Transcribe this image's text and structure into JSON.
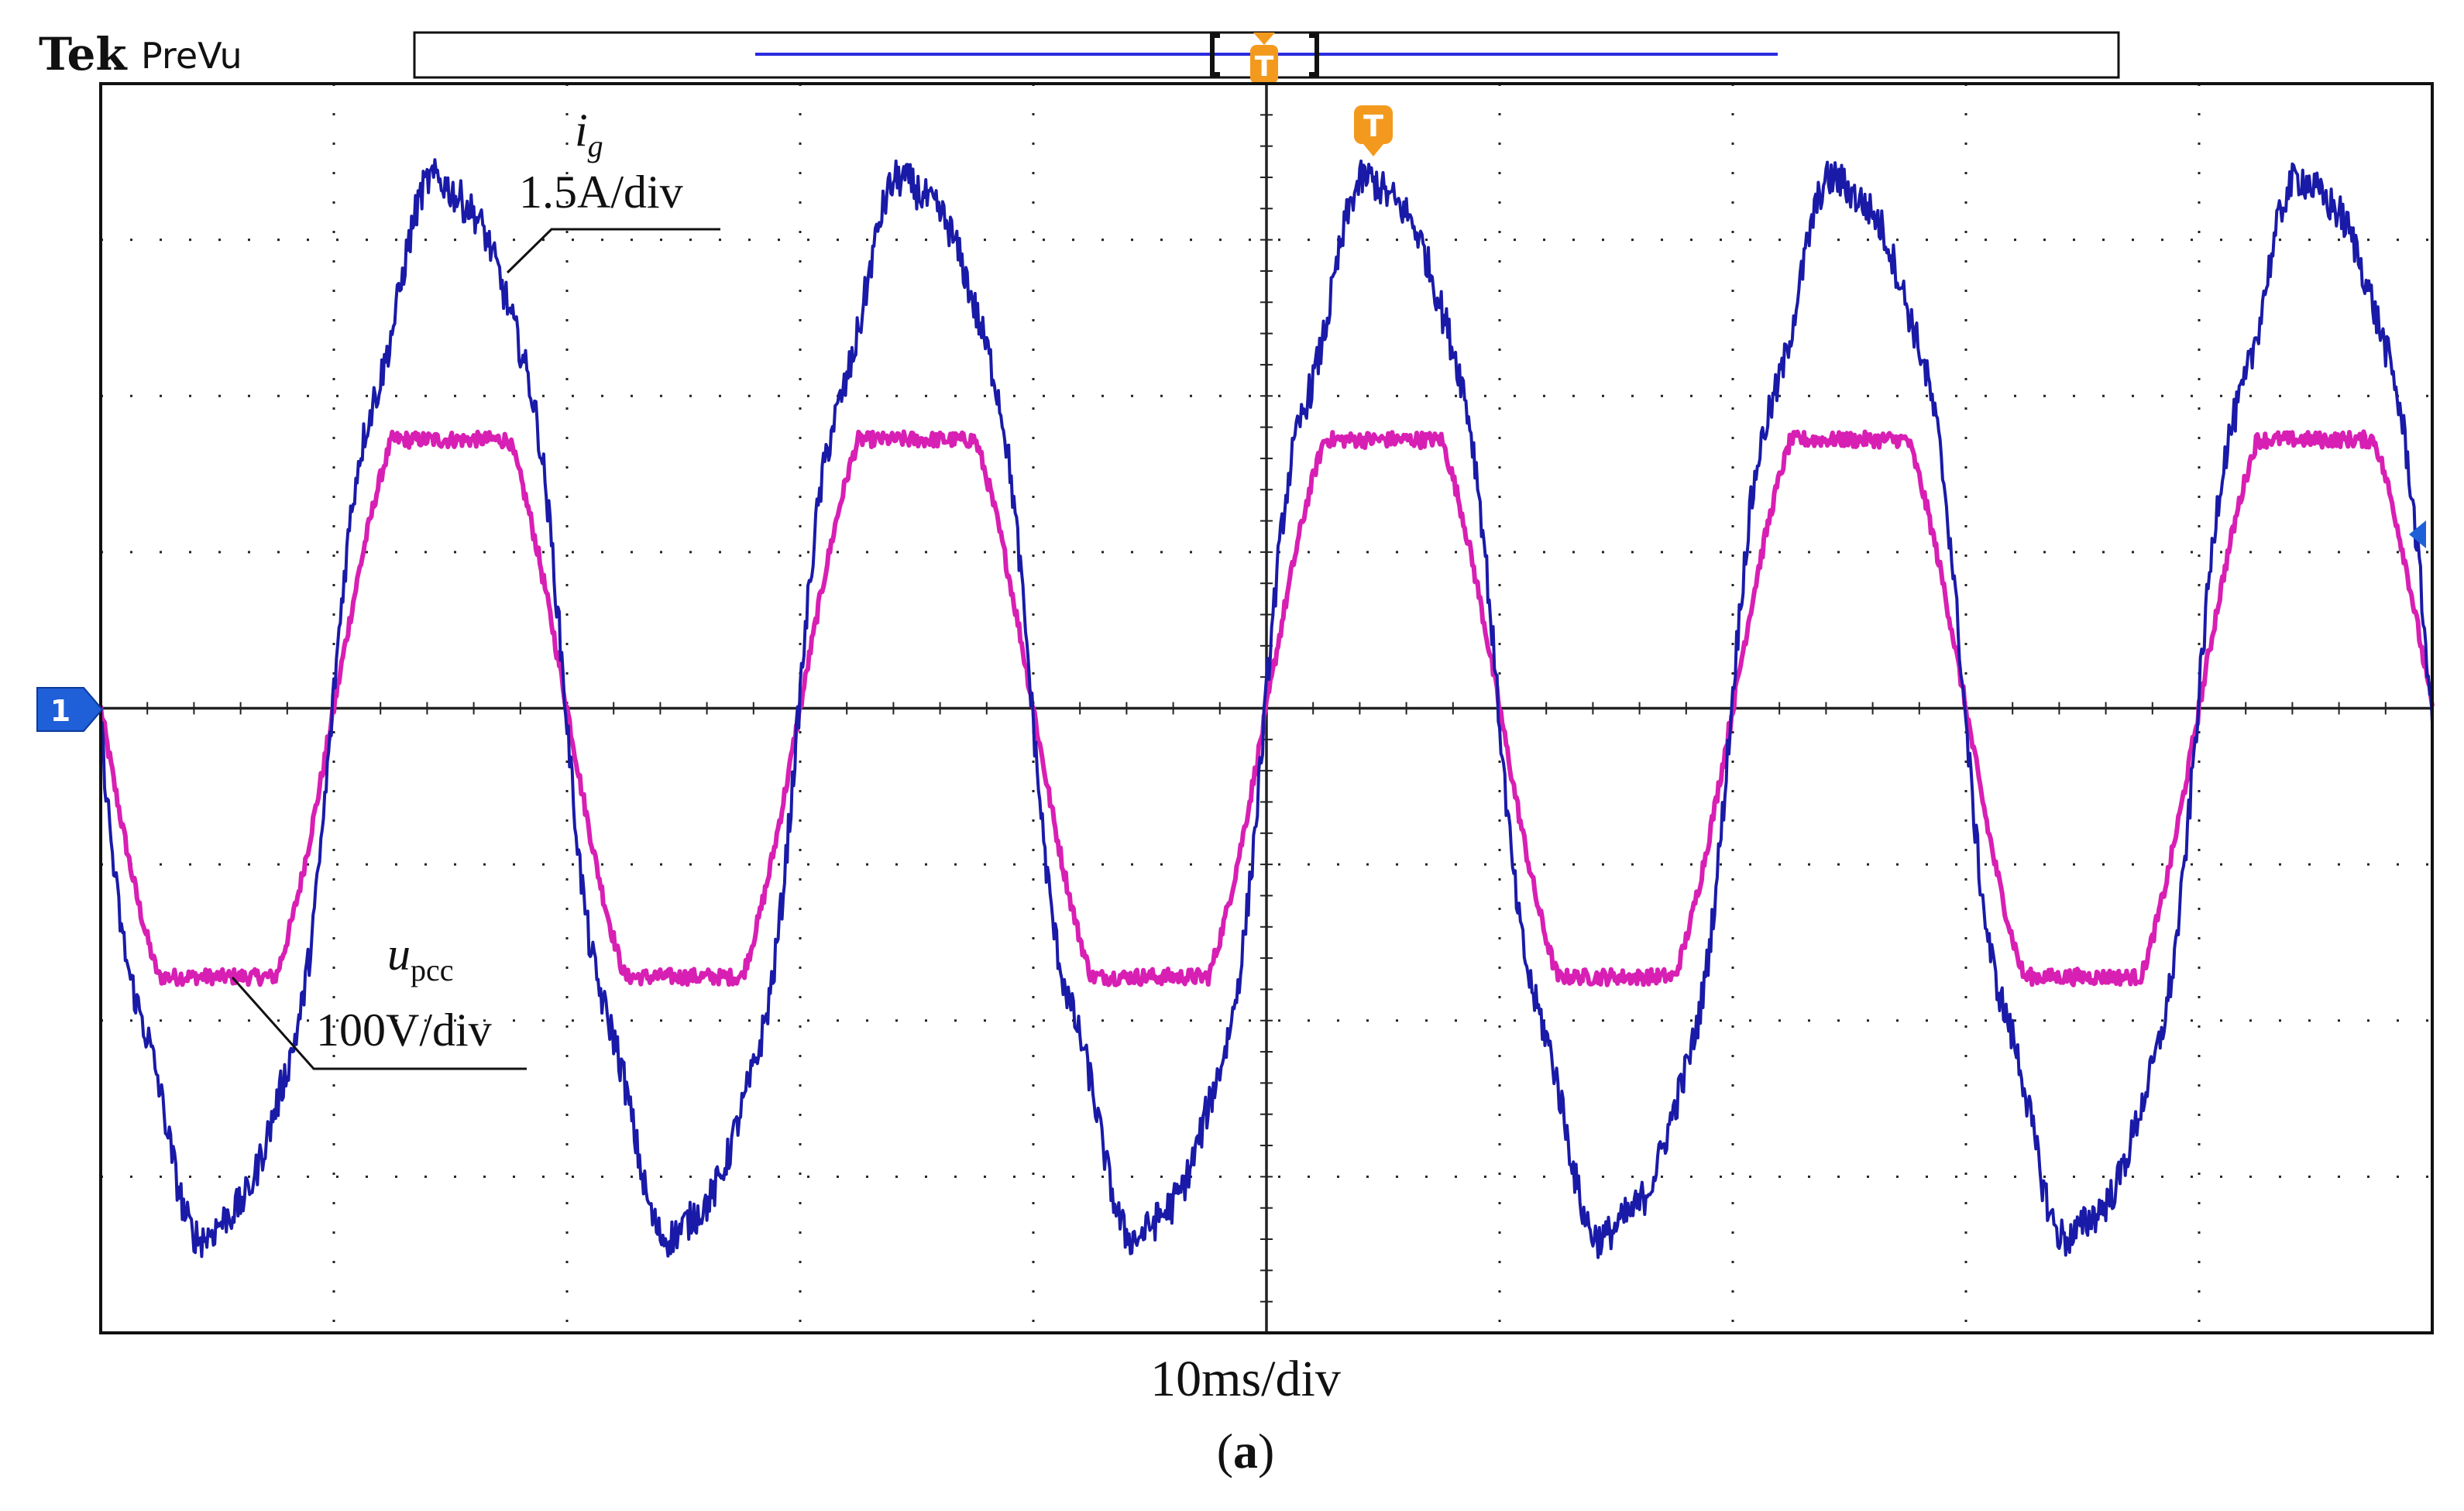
{
  "header": {
    "brand": "Tek",
    "mode": "PreVu",
    "trigger_marker": "T",
    "channel_marker": "1"
  },
  "colors": {
    "current": "#1a1aa8",
    "voltage": "#d81fb4",
    "grid": "#222222",
    "trigger": "#f39a1e",
    "channel": "#1f5fd8"
  },
  "chart_data": {
    "type": "line",
    "title": "",
    "xlabel": "10ms/div",
    "ylabel": "",
    "caption_open": "(",
    "caption_letter": "a",
    "caption_close": ")",
    "x_divisions": 10,
    "y_divisions": 8,
    "xlim": [
      0,
      100
    ],
    "ylim": [
      -4,
      4
    ],
    "x_unit": "ms",
    "series": [
      {
        "name": "ig",
        "label_main": "i",
        "label_sub": "g",
        "scale": "1.5A/div",
        "waveform": "distorted-sine",
        "frequency_hz": 50,
        "peak_div": 3.7,
        "phase_at_x0_deg": 180,
        "ripple_div": 0.12
      },
      {
        "name": "upcc",
        "label_main": "u",
        "label_sub": "pcc",
        "scale": "100V/div",
        "waveform": "flat-top-sine",
        "frequency_hz": 50,
        "peak_div": 1.72,
        "phase_at_x0_deg": 180,
        "ripple_div": 0.05
      }
    ]
  }
}
